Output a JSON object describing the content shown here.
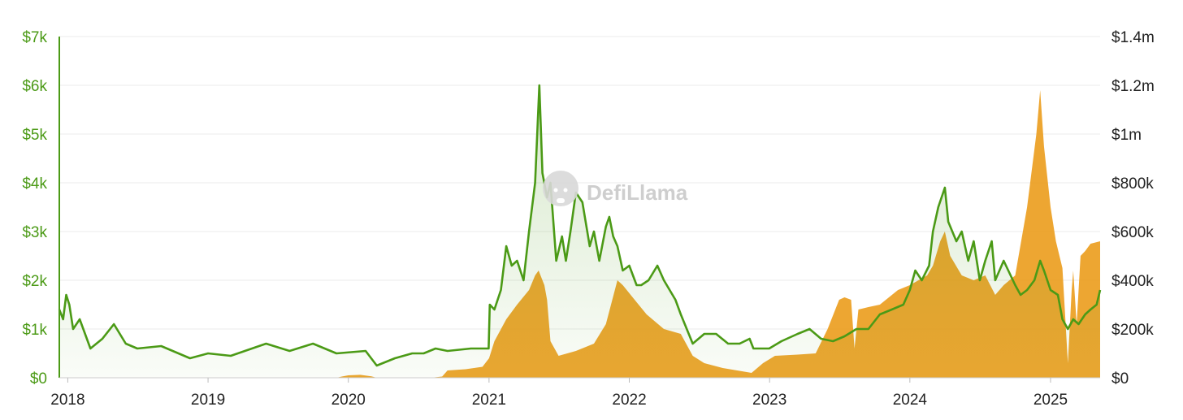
{
  "colors": {
    "left_series": "#4b9a16",
    "right_series": "#eb9a16",
    "grid": "#ebebeb"
  },
  "watermark": {
    "text": "DefiLlama",
    "icon": "llama-icon"
  },
  "chart_data": {
    "type": "line",
    "grid": true,
    "x_ticks": [
      "2018",
      "2019",
      "2020",
      "2021",
      "2022",
      "2023",
      "2024",
      "2025"
    ],
    "x_range": [
      "2017-12-10",
      "2025-05-10"
    ],
    "y_left": {
      "range": [
        0,
        7000
      ],
      "ticks": [
        0,
        1000,
        2000,
        3000,
        4000,
        5000,
        6000,
        7000
      ],
      "tick_labels": [
        "$0",
        "$1k",
        "$2k",
        "$3k",
        "$4k",
        "$5k",
        "$6k",
        "$7k"
      ]
    },
    "y_right": {
      "range": [
        0,
        1400000
      ],
      "ticks": [
        0,
        200000,
        400000,
        600000,
        800000,
        1000000,
        1200000,
        1400000
      ],
      "tick_labels": [
        "$0",
        "$200k",
        "$400k",
        "$600k",
        "$800k",
        "$1m",
        "$1.2m",
        "$1.4m"
      ]
    },
    "series": [
      {
        "type": "area",
        "axis": "right",
        "color": "#eb9a16",
        "points": [
          [
            "2017-12-10",
            0
          ],
          [
            "2019-12-01",
            0
          ],
          [
            "2019-12-15",
            5000
          ],
          [
            "2020-01-01",
            10000
          ],
          [
            "2020-02-01",
            12000
          ],
          [
            "2020-03-01",
            6000
          ],
          [
            "2020-03-15",
            0
          ],
          [
            "2020-08-01",
            0
          ],
          [
            "2020-09-01",
            5000
          ],
          [
            "2020-09-15",
            30000
          ],
          [
            "2020-11-01",
            35000
          ],
          [
            "2020-12-15",
            45000
          ],
          [
            "2021-01-01",
            80000
          ],
          [
            "2021-01-15",
            150000
          ],
          [
            "2021-02-15",
            240000
          ],
          [
            "2021-03-15",
            300000
          ],
          [
            "2021-04-15",
            360000
          ],
          [
            "2021-05-01",
            420000
          ],
          [
            "2021-05-10",
            440000
          ],
          [
            "2021-05-25",
            380000
          ],
          [
            "2021-06-01",
            320000
          ],
          [
            "2021-06-10",
            150000
          ],
          [
            "2021-07-01",
            90000
          ],
          [
            "2021-08-15",
            110000
          ],
          [
            "2021-10-01",
            140000
          ],
          [
            "2021-11-01",
            220000
          ],
          [
            "2021-12-01",
            400000
          ],
          [
            "2021-12-15",
            380000
          ],
          [
            "2022-01-15",
            320000
          ],
          [
            "2022-02-15",
            260000
          ],
          [
            "2022-04-01",
            200000
          ],
          [
            "2022-05-15",
            180000
          ],
          [
            "2022-06-15",
            90000
          ],
          [
            "2022-07-15",
            60000
          ],
          [
            "2022-09-01",
            40000
          ],
          [
            "2022-11-15",
            20000
          ],
          [
            "2022-12-15",
            60000
          ],
          [
            "2023-01-15",
            90000
          ],
          [
            "2023-03-15",
            95000
          ],
          [
            "2023-05-01",
            100000
          ],
          [
            "2023-06-01",
            200000
          ],
          [
            "2023-07-01",
            320000
          ],
          [
            "2023-07-15",
            330000
          ],
          [
            "2023-08-01",
            320000
          ],
          [
            "2023-08-10",
            120000
          ],
          [
            "2023-08-20",
            280000
          ],
          [
            "2023-09-15",
            290000
          ],
          [
            "2023-10-15",
            300000
          ],
          [
            "2023-12-01",
            360000
          ],
          [
            "2024-01-01",
            380000
          ],
          [
            "2024-02-15",
            420000
          ],
          [
            "2024-03-01",
            460000
          ],
          [
            "2024-03-20",
            560000
          ],
          [
            "2024-04-01",
            600000
          ],
          [
            "2024-04-15",
            500000
          ],
          [
            "2024-05-15",
            420000
          ],
          [
            "2024-06-15",
            400000
          ],
          [
            "2024-07-15",
            420000
          ],
          [
            "2024-08-10",
            340000
          ],
          [
            "2024-09-01",
            380000
          ],
          [
            "2024-10-01",
            420000
          ],
          [
            "2024-11-01",
            700000
          ],
          [
            "2024-11-25",
            1000000
          ],
          [
            "2024-12-05",
            1180000
          ],
          [
            "2024-12-15",
            950000
          ],
          [
            "2025-01-01",
            700000
          ],
          [
            "2025-01-15",
            560000
          ],
          [
            "2025-02-01",
            450000
          ],
          [
            "2025-02-15",
            60000
          ],
          [
            "2025-02-25",
            360000
          ],
          [
            "2025-03-01",
            440000
          ],
          [
            "2025-03-10",
            220000
          ],
          [
            "2025-03-20",
            500000
          ],
          [
            "2025-04-01",
            520000
          ],
          [
            "2025-04-15",
            550000
          ],
          [
            "2025-05-10",
            560000
          ],
          [
            "2025-05-10",
            0
          ]
        ]
      },
      {
        "type": "line",
        "axis": "left",
        "color": "#4b9a16",
        "fill": true,
        "points": [
          [
            "2017-12-10",
            1400
          ],
          [
            "2017-12-20",
            1200
          ],
          [
            "2017-12-28",
            1700
          ],
          [
            "2018-01-05",
            1500
          ],
          [
            "2018-01-15",
            1000
          ],
          [
            "2018-02-01",
            1200
          ],
          [
            "2018-02-15",
            900
          ],
          [
            "2018-03-01",
            600
          ],
          [
            "2018-04-01",
            800
          ],
          [
            "2018-05-01",
            1100
          ],
          [
            "2018-06-01",
            700
          ],
          [
            "2018-07-01",
            600
          ],
          [
            "2018-09-01",
            650
          ],
          [
            "2018-11-15",
            400
          ],
          [
            "2019-01-01",
            500
          ],
          [
            "2019-03-01",
            450
          ],
          [
            "2019-06-01",
            700
          ],
          [
            "2019-08-01",
            550
          ],
          [
            "2019-10-01",
            700
          ],
          [
            "2019-12-01",
            500
          ],
          [
            "2020-02-15",
            550
          ],
          [
            "2020-03-15",
            250
          ],
          [
            "2020-05-01",
            400
          ],
          [
            "2020-06-15",
            500
          ],
          [
            "2020-07-15",
            500
          ],
          [
            "2020-08-15",
            600
          ],
          [
            "2020-09-15",
            550
          ],
          [
            "2020-11-15",
            600
          ],
          [
            "2020-12-31",
            600
          ],
          [
            "2021-01-03",
            1500
          ],
          [
            "2021-01-15",
            1400
          ],
          [
            "2021-02-01",
            1800
          ],
          [
            "2021-02-15",
            2700
          ],
          [
            "2021-03-01",
            2300
          ],
          [
            "2021-03-15",
            2400
          ],
          [
            "2021-04-01",
            2000
          ],
          [
            "2021-04-15",
            3000
          ],
          [
            "2021-05-01",
            4000
          ],
          [
            "2021-05-12",
            6000
          ],
          [
            "2021-05-20",
            4200
          ],
          [
            "2021-06-01",
            3700
          ],
          [
            "2021-06-10",
            4000
          ],
          [
            "2021-06-25",
            2400
          ],
          [
            "2021-07-10",
            2900
          ],
          [
            "2021-07-20",
            2400
          ],
          [
            "2021-08-01",
            3000
          ],
          [
            "2021-08-15",
            3800
          ],
          [
            "2021-09-01",
            3600
          ],
          [
            "2021-09-20",
            2700
          ],
          [
            "2021-10-01",
            3000
          ],
          [
            "2021-10-15",
            2400
          ],
          [
            "2021-11-01",
            3100
          ],
          [
            "2021-11-10",
            3300
          ],
          [
            "2021-11-20",
            2900
          ],
          [
            "2021-12-01",
            2700
          ],
          [
            "2021-12-15",
            2200
          ],
          [
            "2022-01-01",
            2300
          ],
          [
            "2022-01-20",
            1900
          ],
          [
            "2022-02-01",
            1900
          ],
          [
            "2022-02-20",
            2000
          ],
          [
            "2022-03-15",
            2300
          ],
          [
            "2022-04-01",
            2000
          ],
          [
            "2022-05-01",
            1600
          ],
          [
            "2022-05-15",
            1300
          ],
          [
            "2022-06-15",
            700
          ],
          [
            "2022-07-15",
            900
          ],
          [
            "2022-08-15",
            900
          ],
          [
            "2022-09-15",
            700
          ],
          [
            "2022-10-15",
            700
          ],
          [
            "2022-11-10",
            800
          ],
          [
            "2022-11-20",
            600
          ],
          [
            "2022-12-31",
            600
          ],
          [
            "2023-02-01",
            750
          ],
          [
            "2023-03-15",
            900
          ],
          [
            "2023-04-15",
            1000
          ],
          [
            "2023-05-15",
            800
          ],
          [
            "2023-06-15",
            750
          ],
          [
            "2023-07-15",
            850
          ],
          [
            "2023-08-15",
            1000
          ],
          [
            "2023-09-15",
            1000
          ],
          [
            "2023-10-15",
            1300
          ],
          [
            "2023-11-15",
            1400
          ],
          [
            "2023-12-15",
            1500
          ],
          [
            "2024-01-01",
            1800
          ],
          [
            "2024-01-15",
            2200
          ],
          [
            "2024-02-01",
            2000
          ],
          [
            "2024-02-20",
            2300
          ],
          [
            "2024-03-01",
            3000
          ],
          [
            "2024-03-15",
            3500
          ],
          [
            "2024-04-01",
            3900
          ],
          [
            "2024-04-10",
            3200
          ],
          [
            "2024-05-01",
            2800
          ],
          [
            "2024-05-15",
            3000
          ],
          [
            "2024-06-01",
            2400
          ],
          [
            "2024-06-15",
            2800
          ],
          [
            "2024-07-01",
            2000
          ],
          [
            "2024-07-15",
            2400
          ],
          [
            "2024-08-01",
            2800
          ],
          [
            "2024-08-10",
            2000
          ],
          [
            "2024-09-01",
            2400
          ],
          [
            "2024-10-01",
            1900
          ],
          [
            "2024-10-15",
            1700
          ],
          [
            "2024-11-01",
            1800
          ],
          [
            "2024-11-20",
            2000
          ],
          [
            "2024-12-05",
            2400
          ],
          [
            "2024-12-15",
            2200
          ],
          [
            "2025-01-01",
            1800
          ],
          [
            "2025-01-20",
            1700
          ],
          [
            "2025-02-01",
            1200
          ],
          [
            "2025-02-15",
            1000
          ],
          [
            "2025-03-01",
            1200
          ],
          [
            "2025-03-15",
            1100
          ],
          [
            "2025-04-01",
            1300
          ],
          [
            "2025-04-15",
            1400
          ],
          [
            "2025-05-01",
            1500
          ],
          [
            "2025-05-10",
            1800
          ]
        ]
      }
    ]
  }
}
